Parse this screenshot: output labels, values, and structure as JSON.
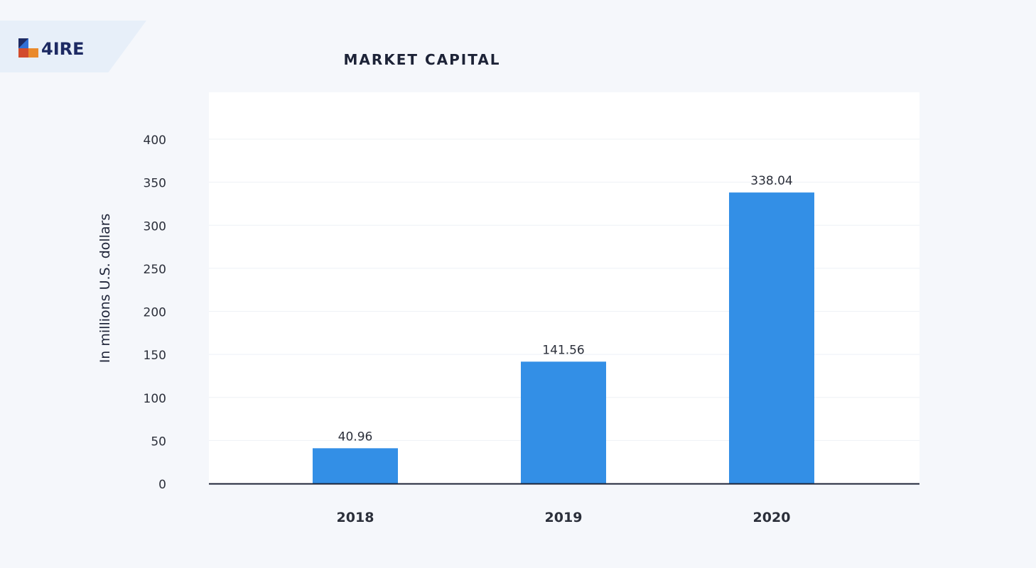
{
  "brand": {
    "logo_text": "4IRE",
    "colors": {
      "navy": "#1d2a63",
      "blue": "#2f6fd6",
      "orange": "#ea8a2c",
      "red": "#d24b2c",
      "banner": "#e7eff9"
    }
  },
  "chart_data": {
    "type": "bar",
    "title": "MARKET CAPITAL",
    "ylabel": "In millions U.S. dollars",
    "xlabel": "",
    "categories": [
      "2018",
      "2019",
      "2020"
    ],
    "values": [
      40.96,
      141.56,
      338.04
    ],
    "data_labels": [
      "40.96",
      "141.56",
      "338.04"
    ],
    "yticks": [
      0,
      50,
      100,
      150,
      200,
      250,
      300,
      350,
      400
    ],
    "ylim": [
      0,
      400
    ],
    "grid": true,
    "bar_color": "#338fe6",
    "axis_color": "#1d2337"
  }
}
